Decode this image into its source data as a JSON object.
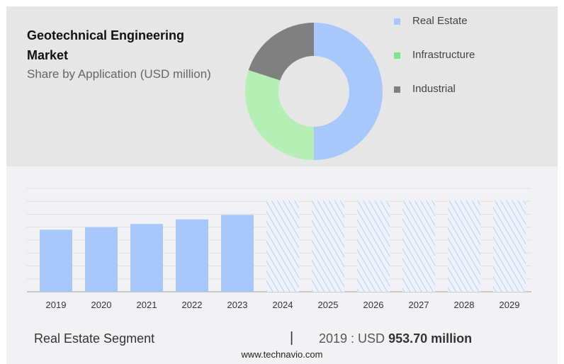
{
  "chart_data": [
    {
      "type": "pie",
      "title": "Geotechnical Engineering Market",
      "subtitle": "Share by Application (USD million)",
      "labels": [
        "Real Estate",
        "Infrastructure",
        "Industrial"
      ],
      "values": [
        50,
        30,
        20
      ],
      "colors": [
        "#a8c8fb",
        "#b5efb5",
        "#808080"
      ],
      "legend": "right"
    },
    {
      "type": "bar",
      "categories": [
        "2019",
        "2020",
        "2021",
        "2022",
        "2023",
        "2024",
        "2025",
        "2026",
        "2027",
        "2028",
        "2029"
      ],
      "values": [
        4.8,
        5.0,
        5.25,
        5.6,
        5.95,
        7.05,
        7.05,
        7.05,
        7.05,
        7.05,
        7.05
      ],
      "forecast_from": "2024",
      "ylim": [
        0,
        8
      ],
      "grid": true,
      "color": "#a8c8fb",
      "xlabel": "",
      "ylabel": ""
    }
  ],
  "footer": {
    "segment": "Real Estate Segment",
    "separator": "|",
    "year_prefix": "2019 : USD",
    "value": "953.70 million",
    "url": "www.technavio.com"
  }
}
